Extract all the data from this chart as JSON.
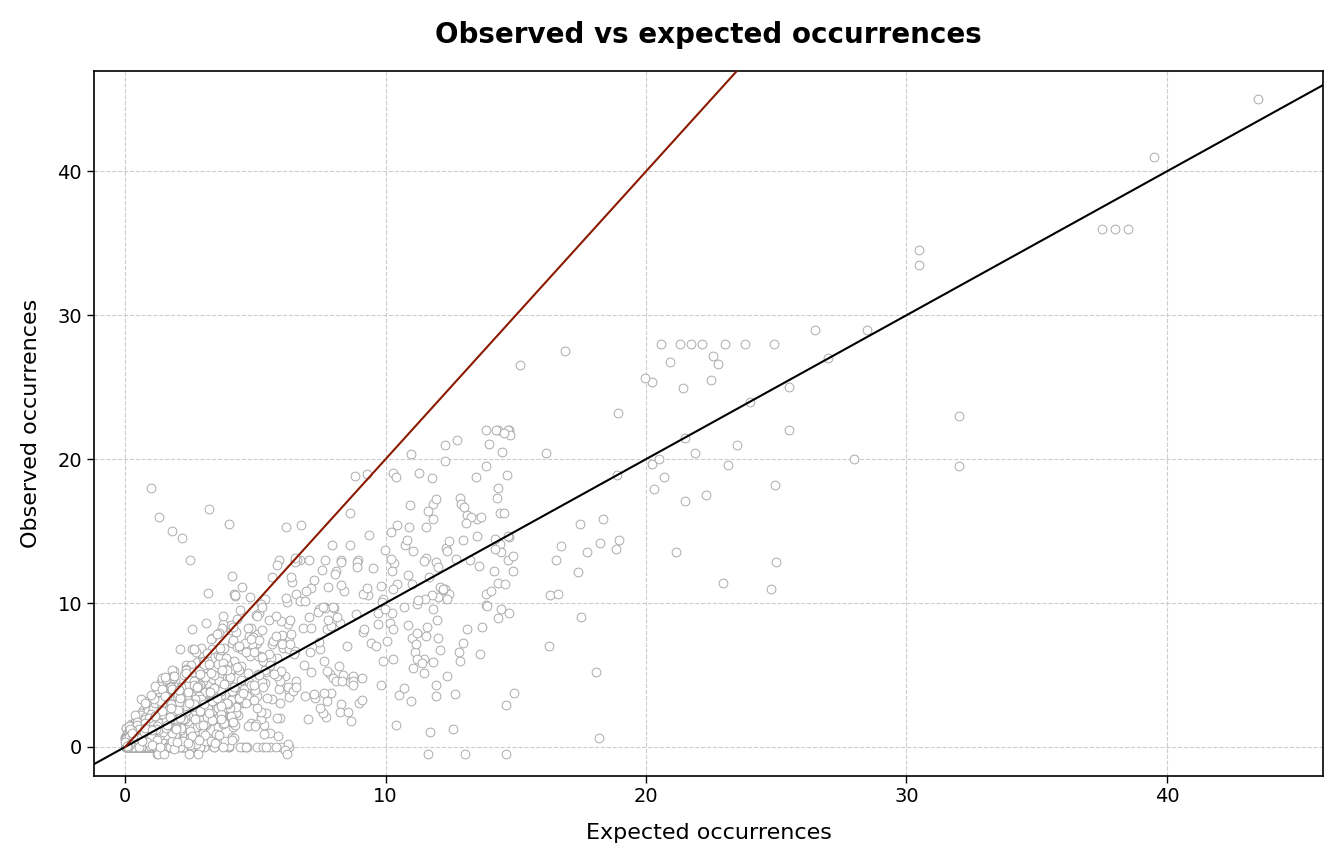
{
  "title": "Observed vs expected occurrences",
  "xlabel": "Expected occurrences",
  "ylabel": "Observed occurrences",
  "xlim": [
    -1.2,
    46
  ],
  "ylim": [
    -2.0,
    47
  ],
  "xticks": [
    0,
    10,
    20,
    30,
    40
  ],
  "yticks": [
    0,
    10,
    20,
    30,
    40
  ],
  "diagonal_color": "#000000",
  "threshold_color": "#8B1A00",
  "threshold_slope": 2.0,
  "point_facecolor": "white",
  "point_edge_color": "#AAAAAA",
  "point_size": 40,
  "point_linewidth": 0.7,
  "seed": 42,
  "title_fontsize": 20,
  "label_fontsize": 16,
  "tick_fontsize": 14,
  "grid_color": "#CCCCCC",
  "line_width": 1.5
}
